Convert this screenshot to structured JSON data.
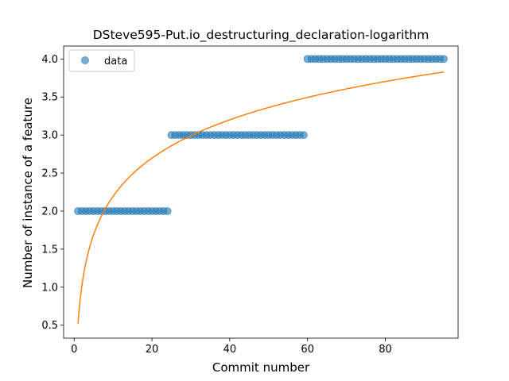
{
  "chart_data": {
    "type": "scatter",
    "title": "DSteve595-Put.io_destructuring_declaration-logarithm",
    "xlabel": "Commit number",
    "ylabel": "Number of instance of a feature",
    "xlim": [
      -2.7,
      98.7
    ],
    "ylim": [
      0.33,
      4.17
    ],
    "xticks": [
      0,
      20,
      40,
      60,
      80
    ],
    "xtick_labels": [
      "0",
      "20",
      "40",
      "60",
      "80"
    ],
    "yticks": [
      0.5,
      1.0,
      1.5,
      2.0,
      2.5,
      3.0,
      3.5,
      4.0
    ],
    "ytick_labels": [
      "0.5",
      "1.0",
      "1.5",
      "2.0",
      "2.5",
      "3.0",
      "3.5",
      "4.0"
    ],
    "grid": false,
    "legend": {
      "position": "top-left",
      "entries": [
        "data"
      ]
    },
    "colors": {
      "points": "#1f77b4",
      "fit": "#ff7f0e"
    },
    "series": [
      {
        "name": "data",
        "kind": "scatter",
        "x": [
          1,
          2,
          3,
          4,
          5,
          6,
          7,
          8,
          9,
          10,
          11,
          12,
          13,
          14,
          15,
          16,
          17,
          18,
          19,
          20,
          21,
          22,
          23,
          24,
          25,
          26,
          27,
          28,
          29,
          30,
          31,
          32,
          33,
          34,
          35,
          36,
          37,
          38,
          39,
          40,
          41,
          42,
          43,
          44,
          45,
          46,
          47,
          48,
          49,
          50,
          51,
          52,
          53,
          54,
          55,
          56,
          57,
          58,
          59,
          60,
          61,
          62,
          63,
          64,
          65,
          66,
          67,
          68,
          69,
          70,
          71,
          72,
          73,
          74,
          75,
          76,
          77,
          78,
          79,
          80,
          81,
          82,
          83,
          84,
          85,
          86,
          87,
          88,
          89,
          90,
          91,
          92,
          93,
          94,
          95
        ],
        "y": [
          2,
          2,
          2,
          2,
          2,
          2,
          2,
          2,
          2,
          2,
          2,
          2,
          2,
          2,
          2,
          2,
          2,
          2,
          2,
          2,
          2,
          2,
          2,
          2,
          3,
          3,
          3,
          3,
          3,
          3,
          3,
          3,
          3,
          3,
          3,
          3,
          3,
          3,
          3,
          3,
          3,
          3,
          3,
          3,
          3,
          3,
          3,
          3,
          3,
          3,
          3,
          3,
          3,
          3,
          3,
          3,
          3,
          3,
          3,
          4,
          4,
          4,
          4,
          4,
          4,
          4,
          4,
          4,
          4,
          4,
          4,
          4,
          4,
          4,
          4,
          4,
          4,
          4,
          4,
          4,
          4,
          4,
          4,
          4,
          4,
          4,
          4,
          4,
          4,
          4,
          4,
          4,
          4,
          4,
          4
        ]
      },
      {
        "kind": "line",
        "fit": {
          "a": 0.52,
          "b": 0.7265,
          "x_start": 1,
          "x_end": 95
        }
      }
    ]
  }
}
